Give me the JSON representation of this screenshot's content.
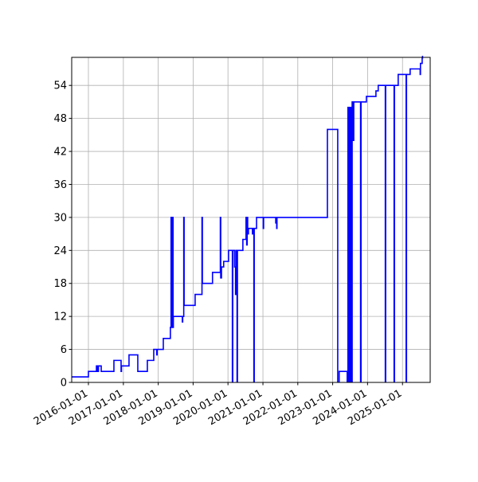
{
  "chart_data": {
    "type": "line",
    "step": "post",
    "title": "",
    "xlabel": "",
    "ylabel": "",
    "xlim": [
      "2015-07-10",
      "2025-10-18"
    ],
    "ylim": [
      0,
      59.1
    ],
    "grid": true,
    "line_color": "#0000ff",
    "x_ticks": [
      "2016-01-01",
      "2017-01-01",
      "2018-01-01",
      "2019-01-01",
      "2020-01-01",
      "2021-01-01",
      "2022-01-01",
      "2023-01-01",
      "2024-01-01",
      "2025-01-01"
    ],
    "y_ticks": [
      0,
      6,
      12,
      18,
      24,
      30,
      36,
      42,
      48,
      54
    ],
    "series": [
      {
        "points": [
          [
            "2015-07-01",
            1
          ],
          [
            "2016-01-01",
            2
          ],
          [
            "2016-03-25",
            3
          ],
          [
            "2016-04-05",
            2
          ],
          [
            "2016-04-15",
            3
          ],
          [
            "2016-05-14",
            2
          ],
          [
            "2016-09-24",
            4
          ],
          [
            "2016-12-08",
            2
          ],
          [
            "2016-12-12",
            3
          ],
          [
            "2017-03-01",
            5
          ],
          [
            "2017-06-01",
            2
          ],
          [
            "2017-09-09",
            4
          ],
          [
            "2017-11-15",
            6
          ],
          [
            "2017-12-16",
            5
          ],
          [
            "2017-12-20",
            6
          ],
          [
            "2018-02-23",
            8
          ],
          [
            "2018-05-08",
            10
          ],
          [
            "2018-05-15",
            30
          ],
          [
            "2018-05-18",
            10
          ],
          [
            "2018-05-21",
            30
          ],
          [
            "2018-05-24",
            11
          ],
          [
            "2018-05-27",
            30
          ],
          [
            "2018-05-30",
            10
          ],
          [
            "2018-06-02",
            30
          ],
          [
            "2018-06-05",
            10
          ],
          [
            "2018-06-08",
            12
          ],
          [
            "2018-09-10",
            11
          ],
          [
            "2018-09-14",
            12
          ],
          [
            "2018-09-25",
            30
          ],
          [
            "2018-09-29",
            14
          ],
          [
            "2019-01-22",
            16
          ],
          [
            "2019-04-04",
            30
          ],
          [
            "2019-04-08",
            18
          ],
          [
            "2019-07-23",
            20
          ],
          [
            "2019-10-13",
            30
          ],
          [
            "2019-10-17",
            19
          ],
          [
            "2019-10-25",
            21
          ],
          [
            "2019-11-17",
            22
          ],
          [
            "2020-01-07",
            24
          ],
          [
            "2020-02-16",
            0
          ],
          [
            "2020-02-20",
            24
          ],
          [
            "2020-03-10",
            21
          ],
          [
            "2020-03-20",
            16
          ],
          [
            "2020-03-25",
            24
          ],
          [
            "2020-04-05",
            0
          ],
          [
            "2020-04-09",
            24
          ],
          [
            "2020-06-05",
            26
          ],
          [
            "2020-07-08",
            30
          ],
          [
            "2020-07-15",
            25
          ],
          [
            "2020-07-20",
            30
          ],
          [
            "2020-07-25",
            27
          ],
          [
            "2020-08-02",
            28
          ],
          [
            "2020-09-13",
            27
          ],
          [
            "2020-09-18",
            28
          ],
          [
            "2020-09-28",
            0
          ],
          [
            "2020-10-02",
            28
          ],
          [
            "2020-10-26",
            30
          ],
          [
            "2021-01-04",
            28
          ],
          [
            "2021-01-08",
            30
          ],
          [
            "2021-05-15",
            29
          ],
          [
            "2021-05-25",
            28
          ],
          [
            "2021-05-28",
            30
          ],
          [
            "2022-11-07",
            46
          ],
          [
            "2023-02-23",
            0
          ],
          [
            "2023-03-10",
            2
          ],
          [
            "2023-06-02",
            0
          ],
          [
            "2023-06-10",
            50
          ],
          [
            "2023-06-15",
            0
          ],
          [
            "2023-06-20",
            50
          ],
          [
            "2023-06-25",
            0
          ],
          [
            "2023-07-01",
            50
          ],
          [
            "2023-07-06",
            0
          ],
          [
            "2023-07-12",
            50
          ],
          [
            "2023-07-18",
            0
          ],
          [
            "2023-07-24",
            51
          ],
          [
            "2023-08-05",
            44
          ],
          [
            "2023-08-10",
            51
          ],
          [
            "2023-10-20",
            0
          ],
          [
            "2023-10-25",
            51
          ],
          [
            "2023-12-20",
            52
          ],
          [
            "2024-03-29",
            53
          ],
          [
            "2024-04-22",
            54
          ],
          [
            "2024-07-05",
            0
          ],
          [
            "2024-07-09",
            54
          ],
          [
            "2024-10-05",
            0
          ],
          [
            "2024-10-09",
            54
          ],
          [
            "2024-11-17",
            56
          ],
          [
            "2025-02-08",
            0
          ],
          [
            "2025-02-12",
            56
          ],
          [
            "2025-03-22",
            57
          ],
          [
            "2025-07-05",
            56
          ],
          [
            "2025-07-08",
            58
          ],
          [
            "2025-07-26",
            59
          ],
          [
            "2025-07-30",
            60
          ]
        ]
      }
    ]
  }
}
